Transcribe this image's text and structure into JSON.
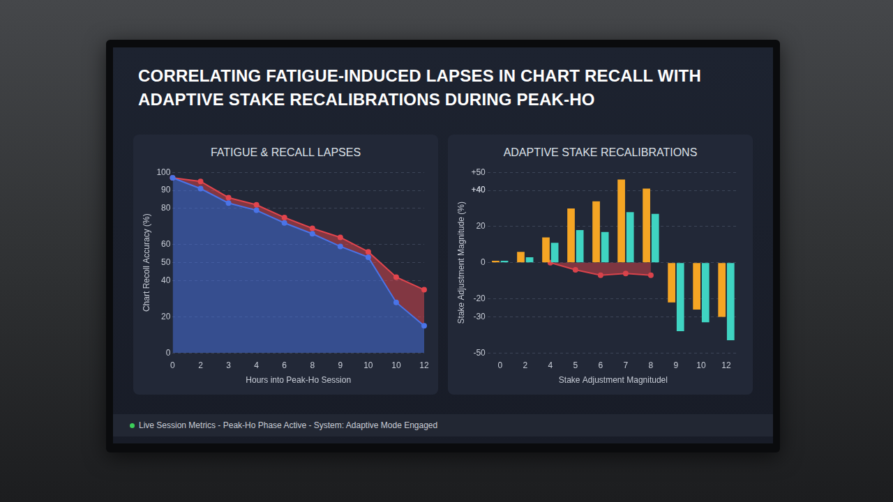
{
  "title": "CORRELATING FATIGUE-INDUCED LAPSES IN CHART RECALL WITH ADAPTIVE STAKE RECALIBRATIONS DURING PEAK-HO",
  "footer": "Live Session Metrics - Peak-Ho Phase Active - System: Adaptive Mode Engaged",
  "chart_data": [
    {
      "type": "area",
      "title": "FATIGUE & RECALL LAPSES",
      "x_label": "Hours into Peak-Ho Session",
      "y_label": "Chart Recoll Accuracy (%)",
      "categories": [
        "0",
        "2",
        "3",
        "4",
        "6",
        "8",
        "9",
        "10",
        "10",
        "12"
      ],
      "series": [
        {
          "color": "#4a74e8",
          "marker": "circle",
          "values": [
            97,
            91,
            83,
            79,
            72,
            66,
            59,
            53,
            28,
            15
          ]
        },
        {
          "color": "#e2454d",
          "marker": "circle",
          "values": [
            97,
            95,
            86,
            82,
            75,
            69,
            64,
            56,
            42,
            35
          ]
        }
      ],
      "ylim": [
        0,
        100
      ],
      "yticks": [
        0,
        20,
        40,
        50,
        60,
        80,
        90,
        100
      ],
      "grid": true
    },
    {
      "type": "bar",
      "title": "ADAPTIVE STAKE RECALIBRATIONS",
      "x_label": "Stake Adjustment Magnitudel",
      "y_label": "Stake Adjustment Magnitude (%)",
      "categories": [
        "0",
        "2",
        "4",
        "5",
        "6",
        "7",
        "8",
        "9",
        "10",
        "12"
      ],
      "series": [
        {
          "color": "#f5a524",
          "values": [
            1,
            6,
            14,
            30,
            34,
            46,
            41,
            -22,
            -26,
            -30
          ]
        },
        {
          "color": "#3fd4c2",
          "values": [
            1,
            3,
            11,
            18,
            17,
            28,
            27,
            -38,
            -33,
            -43
          ]
        },
        {
          "type": "area",
          "color": "#d9434b",
          "marker": "circle",
          "values": [
            null,
            null,
            0,
            -4,
            -7,
            -6,
            -7,
            null,
            null,
            null
          ]
        }
      ],
      "ylim": [
        -50,
        50
      ],
      "yticks": [
        -50,
        -30,
        -20,
        0,
        20,
        {
          "value": 40,
          "label": "+40"
        },
        {
          "value": 40,
          "label": "+40"
        },
        {
          "value": 50,
          "label": "+50"
        }
      ],
      "grid": true
    }
  ]
}
